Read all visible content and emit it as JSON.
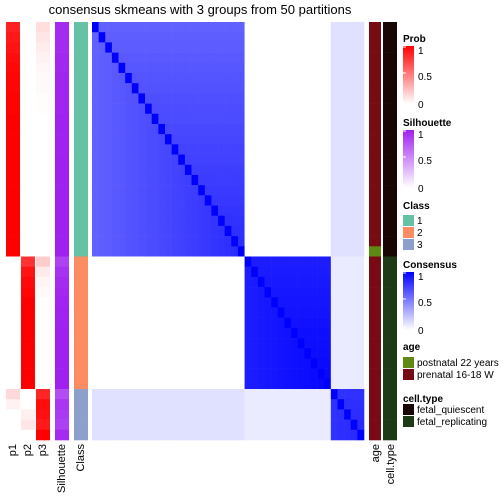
{
  "chart_data": {
    "type": "heatmap",
    "title": "consensus skmeans with 3 groups from 50 partitions",
    "n_samples": 41,
    "samples": [
      {
        "class": 1,
        "p1": 0.87,
        "p2": 0.0,
        "p3": 0.13,
        "silhouette": 0.95,
        "age": "prenatal 16-18 W",
        "cell_type": "fetal_quiescent"
      },
      {
        "class": 1,
        "p1": 0.9,
        "p2": 0.0,
        "p3": 0.1,
        "silhouette": 0.95,
        "age": "prenatal 16-18 W",
        "cell_type": "fetal_quiescent"
      },
      {
        "class": 1,
        "p1": 0.93,
        "p2": 0.0,
        "p3": 0.07,
        "silhouette": 0.96,
        "age": "prenatal 16-18 W",
        "cell_type": "fetal_quiescent"
      },
      {
        "class": 1,
        "p1": 0.95,
        "p2": 0.0,
        "p3": 0.05,
        "silhouette": 0.97,
        "age": "prenatal 16-18 W",
        "cell_type": "fetal_quiescent"
      },
      {
        "class": 1,
        "p1": 0.97,
        "p2": 0.0,
        "p3": 0.03,
        "silhouette": 0.97,
        "age": "prenatal 16-18 W",
        "cell_type": "fetal_quiescent"
      },
      {
        "class": 1,
        "p1": 0.98,
        "p2": 0.0,
        "p3": 0.02,
        "silhouette": 0.98,
        "age": "prenatal 16-18 W",
        "cell_type": "fetal_quiescent"
      },
      {
        "class": 1,
        "p1": 0.98,
        "p2": 0.0,
        "p3": 0.02,
        "silhouette": 0.98,
        "age": "prenatal 16-18 W",
        "cell_type": "fetal_quiescent"
      },
      {
        "class": 1,
        "p1": 0.99,
        "p2": 0.0,
        "p3": 0.01,
        "silhouette": 0.98,
        "age": "prenatal 16-18 W",
        "cell_type": "fetal_quiescent"
      },
      {
        "class": 1,
        "p1": 0.99,
        "p2": 0.0,
        "p3": 0.01,
        "silhouette": 0.98,
        "age": "prenatal 16-18 W",
        "cell_type": "fetal_quiescent"
      },
      {
        "class": 1,
        "p1": 1.0,
        "p2": 0.0,
        "p3": 0.0,
        "silhouette": 0.99,
        "age": "prenatal 16-18 W",
        "cell_type": "fetal_quiescent"
      },
      {
        "class": 1,
        "p1": 1.0,
        "p2": 0.0,
        "p3": 0.0,
        "silhouette": 0.99,
        "age": "prenatal 16-18 W",
        "cell_type": "fetal_quiescent"
      },
      {
        "class": 1,
        "p1": 1.0,
        "p2": 0.0,
        "p3": 0.0,
        "silhouette": 0.99,
        "age": "prenatal 16-18 W",
        "cell_type": "fetal_quiescent"
      },
      {
        "class": 1,
        "p1": 1.0,
        "p2": 0.0,
        "p3": 0.0,
        "silhouette": 0.99,
        "age": "prenatal 16-18 W",
        "cell_type": "fetal_quiescent"
      },
      {
        "class": 1,
        "p1": 1.0,
        "p2": 0.0,
        "p3": 0.0,
        "silhouette": 1.0,
        "age": "prenatal 16-18 W",
        "cell_type": "fetal_quiescent"
      },
      {
        "class": 1,
        "p1": 1.0,
        "p2": 0.0,
        "p3": 0.0,
        "silhouette": 1.0,
        "age": "prenatal 16-18 W",
        "cell_type": "fetal_quiescent"
      },
      {
        "class": 1,
        "p1": 1.0,
        "p2": 0.0,
        "p3": 0.0,
        "silhouette": 1.0,
        "age": "prenatal 16-18 W",
        "cell_type": "fetal_quiescent"
      },
      {
        "class": 1,
        "p1": 1.0,
        "p2": 0.0,
        "p3": 0.0,
        "silhouette": 1.0,
        "age": "prenatal 16-18 W",
        "cell_type": "fetal_quiescent"
      },
      {
        "class": 1,
        "p1": 1.0,
        "p2": 0.0,
        "p3": 0.0,
        "silhouette": 1.0,
        "age": "prenatal 16-18 W",
        "cell_type": "fetal_quiescent"
      },
      {
        "class": 1,
        "p1": 1.0,
        "p2": 0.0,
        "p3": 0.0,
        "silhouette": 1.0,
        "age": "prenatal 16-18 W",
        "cell_type": "fetal_quiescent"
      },
      {
        "class": 1,
        "p1": 1.0,
        "p2": 0.0,
        "p3": 0.0,
        "silhouette": 1.0,
        "age": "prenatal 16-18 W",
        "cell_type": "fetal_quiescent"
      },
      {
        "class": 1,
        "p1": 1.0,
        "p2": 0.0,
        "p3": 0.0,
        "silhouette": 1.0,
        "age": "prenatal 16-18 W",
        "cell_type": "fetal_quiescent"
      },
      {
        "class": 1,
        "p1": 1.0,
        "p2": 0.0,
        "p3": 0.0,
        "silhouette": 1.0,
        "age": "prenatal 16-18 W",
        "cell_type": "fetal_quiescent"
      },
      {
        "class": 1,
        "p1": 1.0,
        "p2": 0.0,
        "p3": 0.0,
        "silhouette": 1.0,
        "age": "postnatal 22 years",
        "cell_type": "fetal_quiescent"
      },
      {
        "class": 2,
        "p1": 0.0,
        "p2": 0.8,
        "p3": 0.2,
        "silhouette": 0.85,
        "age": "prenatal 16-18 W",
        "cell_type": "fetal_replicating"
      },
      {
        "class": 2,
        "p1": 0.0,
        "p2": 0.92,
        "p3": 0.08,
        "silhouette": 0.92,
        "age": "prenatal 16-18 W",
        "cell_type": "fetal_replicating"
      },
      {
        "class": 2,
        "p1": 0.0,
        "p2": 0.96,
        "p3": 0.04,
        "silhouette": 0.95,
        "age": "prenatal 16-18 W",
        "cell_type": "fetal_replicating"
      },
      {
        "class": 2,
        "p1": 0.0,
        "p2": 0.98,
        "p3": 0.02,
        "silhouette": 0.97,
        "age": "prenatal 16-18 W",
        "cell_type": "fetal_replicating"
      },
      {
        "class": 2,
        "p1": 0.0,
        "p2": 1.0,
        "p3": 0.0,
        "silhouette": 0.98,
        "age": "prenatal 16-18 W",
        "cell_type": "fetal_replicating"
      },
      {
        "class": 2,
        "p1": 0.0,
        "p2": 1.0,
        "p3": 0.0,
        "silhouette": 0.99,
        "age": "prenatal 16-18 W",
        "cell_type": "fetal_replicating"
      },
      {
        "class": 2,
        "p1": 0.0,
        "p2": 1.0,
        "p3": 0.0,
        "silhouette": 0.99,
        "age": "prenatal 16-18 W",
        "cell_type": "fetal_replicating"
      },
      {
        "class": 2,
        "p1": 0.0,
        "p2": 1.0,
        "p3": 0.0,
        "silhouette": 1.0,
        "age": "prenatal 16-18 W",
        "cell_type": "fetal_replicating"
      },
      {
        "class": 2,
        "p1": 0.0,
        "p2": 1.0,
        "p3": 0.0,
        "silhouette": 1.0,
        "age": "prenatal 16-18 W",
        "cell_type": "fetal_replicating"
      },
      {
        "class": 2,
        "p1": 0.0,
        "p2": 1.0,
        "p3": 0.0,
        "silhouette": 1.0,
        "age": "prenatal 16-18 W",
        "cell_type": "fetal_replicating"
      },
      {
        "class": 2,
        "p1": 0.0,
        "p2": 1.0,
        "p3": 0.0,
        "silhouette": 1.0,
        "age": "prenatal 16-18 W",
        "cell_type": "fetal_replicating"
      },
      {
        "class": 2,
        "p1": 0.0,
        "p2": 1.0,
        "p3": 0.0,
        "silhouette": 1.0,
        "age": "prenatal 16-18 W",
        "cell_type": "fetal_replicating"
      },
      {
        "class": 2,
        "p1": 0.0,
        "p2": 1.0,
        "p3": 0.0,
        "silhouette": 1.0,
        "age": "prenatal 16-18 W",
        "cell_type": "fetal_replicating"
      },
      {
        "class": 3,
        "p1": 0.15,
        "p2": 0.0,
        "p3": 0.85,
        "silhouette": 0.8,
        "age": "prenatal 16-18 W",
        "cell_type": "fetal_replicating"
      },
      {
        "class": 3,
        "p1": 0.05,
        "p2": 0.0,
        "p3": 0.95,
        "silhouette": 0.9,
        "age": "prenatal 16-18 W",
        "cell_type": "fetal_replicating"
      },
      {
        "class": 3,
        "p1": 0.0,
        "p2": 0.06,
        "p3": 0.94,
        "silhouette": 0.88,
        "age": "prenatal 16-18 W",
        "cell_type": "fetal_replicating"
      },
      {
        "class": 3,
        "p1": 0.0,
        "p2": 0.1,
        "p3": 0.9,
        "silhouette": 0.85,
        "age": "prenatal 16-18 W",
        "cell_type": "fetal_replicating"
      },
      {
        "class": 3,
        "p1": 0.0,
        "p2": 0.0,
        "p3": 1.0,
        "silhouette": 0.95,
        "age": "prenatal 16-18 W",
        "cell_type": "fetal_replicating"
      }
    ],
    "consensus_within": {
      "1": 0.62,
      "2": 0.72,
      "3": 0.55
    },
    "consensus_cross": {
      "1-3": 0.12,
      "2-3": 0.08,
      "1-2": 0.0
    },
    "column_labels": [
      "p1",
      "p2",
      "p3",
      "Silhouette",
      "Class"
    ],
    "row_annotation_labels": [
      "age",
      "cell.type"
    ],
    "legends": {
      "prob": {
        "title": "Prob",
        "ticks": [
          "1",
          "0.5",
          "0"
        ],
        "color_high": "#ff0000",
        "color_low": "#ffffff"
      },
      "silhouette": {
        "title": "Silhouette",
        "ticks": [
          "1",
          "0.5",
          "0"
        ],
        "color_high": "#a020f0",
        "color_low": "#ffffff"
      },
      "class": {
        "title": "Class",
        "items": [
          {
            "label": "1",
            "color": "#66c2a5"
          },
          {
            "label": "2",
            "color": "#fc8d62"
          },
          {
            "label": "3",
            "color": "#8da0cb"
          }
        ]
      },
      "consensus": {
        "title": "Consensus",
        "ticks": [
          "1",
          "0.5",
          "0"
        ],
        "color_high": "#0000ff",
        "color_low": "#ffffff"
      },
      "age": {
        "title": "age",
        "items": [
          {
            "label": "postnatal 22 years",
            "color": "#5e8a14"
          },
          {
            "label": "prenatal 16-18 W",
            "color": "#780a14"
          }
        ]
      },
      "cell_type": {
        "title": "cell.type",
        "items": [
          {
            "label": "fetal_quiescent",
            "color": "#1a0505"
          },
          {
            "label": "fetal_replicating",
            "color": "#1f3a16"
          }
        ]
      }
    }
  }
}
